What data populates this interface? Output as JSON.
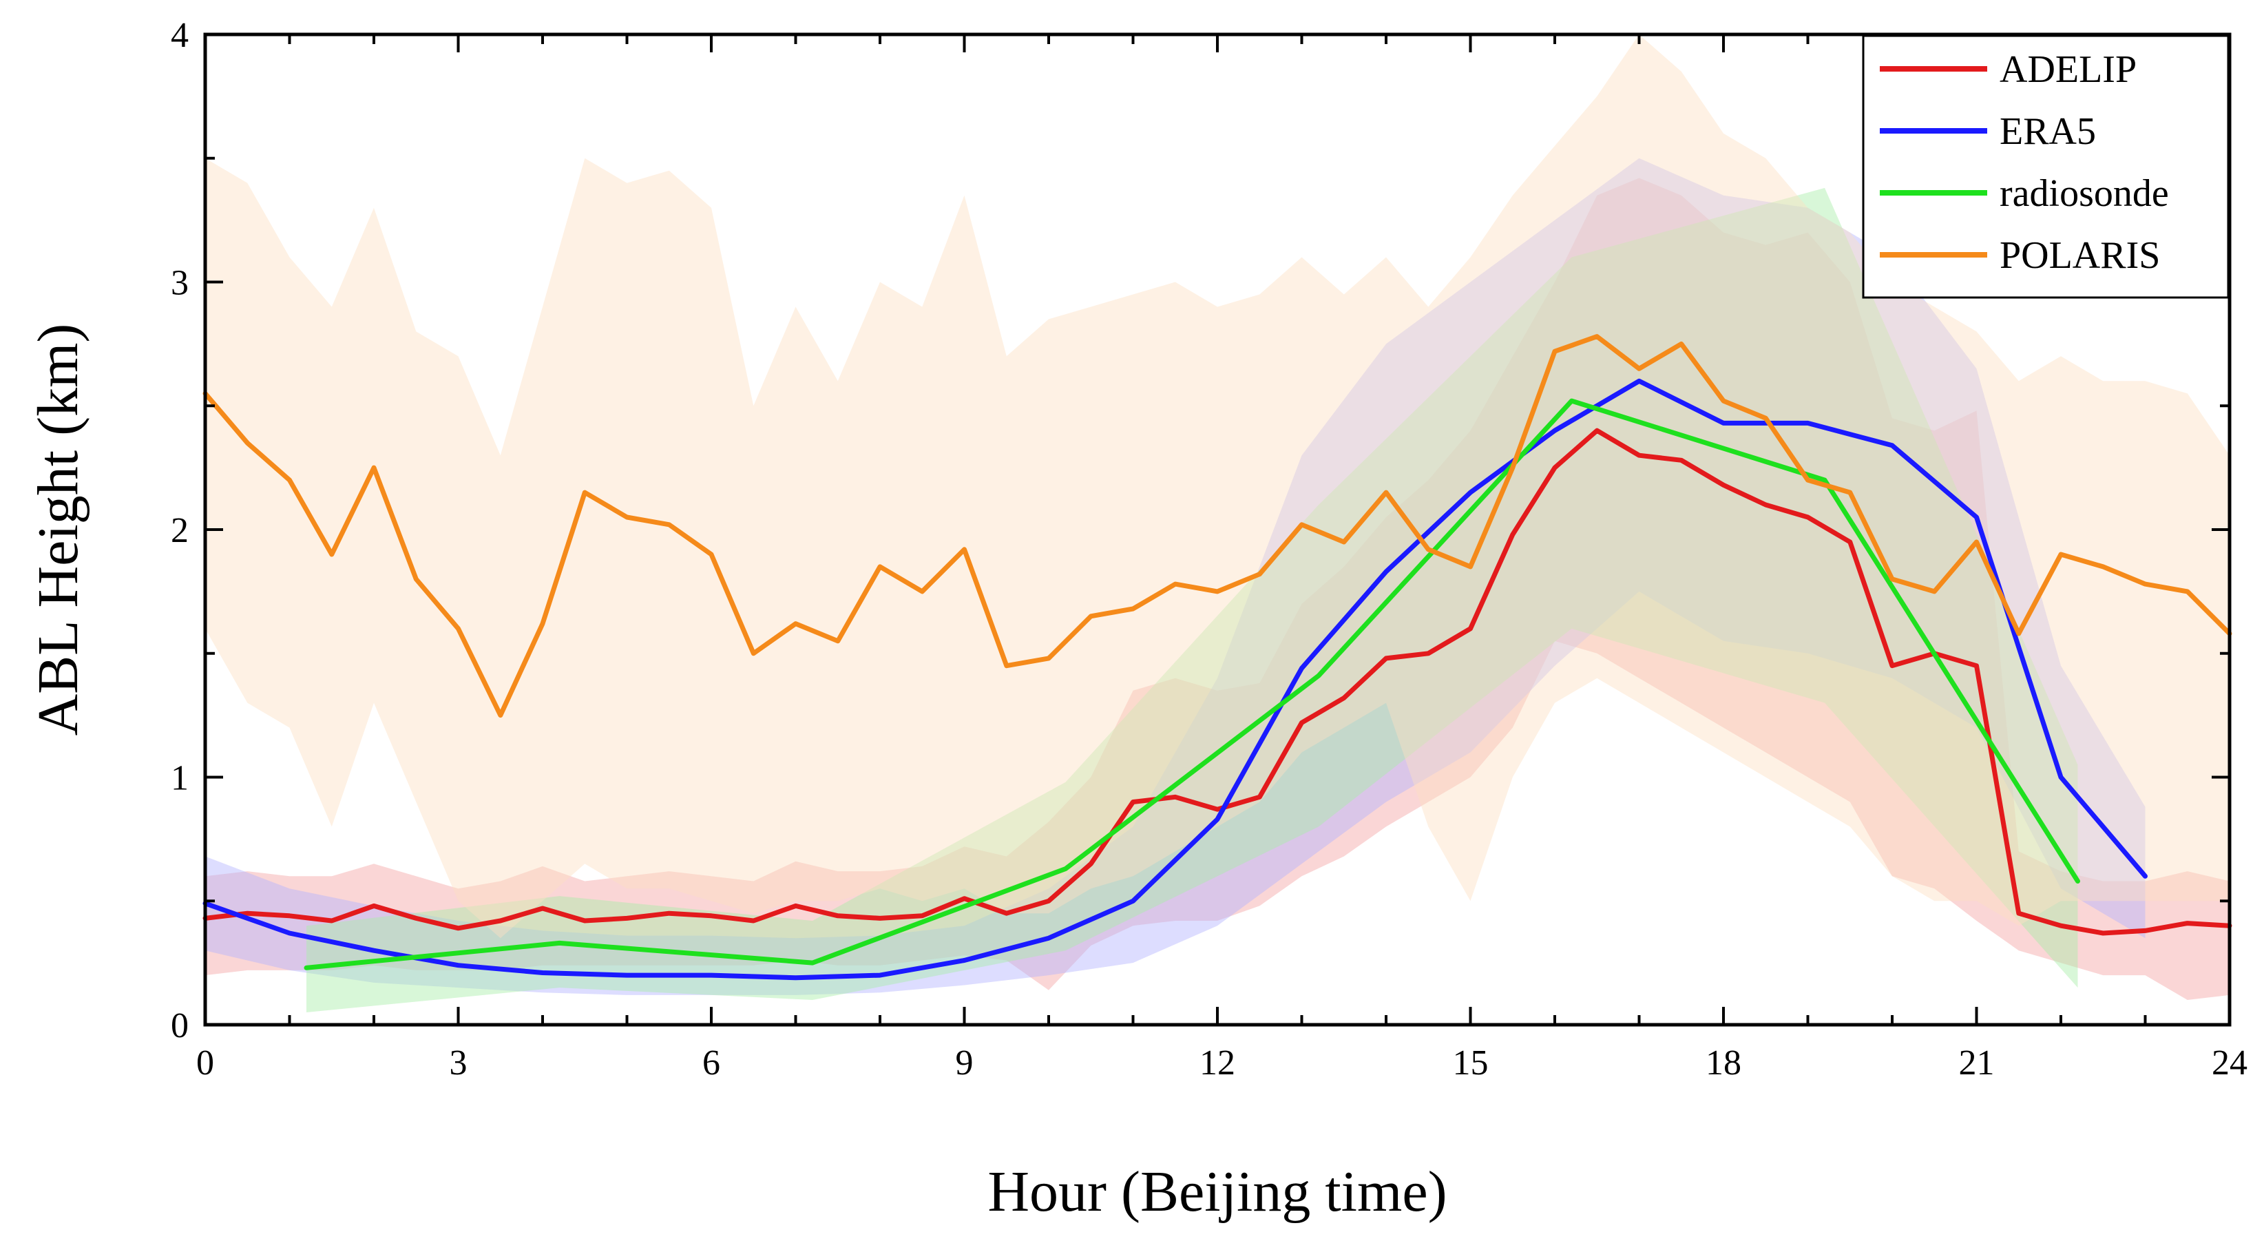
{
  "chart_data": {
    "type": "line",
    "title": "",
    "xlabel": "Hour (Beijing time)",
    "ylabel": "ABL Height (km)",
    "xlim": [
      0,
      24
    ],
    "ylim": [
      0,
      4
    ],
    "xticks": [
      0,
      3,
      6,
      9,
      12,
      15,
      18,
      21,
      24
    ],
    "yticks": [
      0,
      1,
      2,
      3,
      4
    ],
    "xtick_labels": [
      "0",
      "3",
      "6",
      "9",
      "12",
      "15",
      "18",
      "21",
      "24"
    ],
    "ytick_labels": [
      "0",
      "1",
      "2",
      "3",
      "4"
    ],
    "grid": false,
    "legend_position": "top-right",
    "series": [
      {
        "name": "ADELIP",
        "color": "#e31a1c",
        "band_color": "#f4a3a3",
        "x": [
          0,
          0.5,
          1,
          1.5,
          2,
          2.5,
          3,
          3.5,
          4,
          4.5,
          5,
          5.5,
          6,
          6.5,
          7,
          7.5,
          8,
          8.5,
          9,
          9.5,
          10,
          10.5,
          11,
          11.5,
          12,
          12.5,
          13,
          13.5,
          14,
          14.5,
          15,
          15.5,
          16,
          16.5,
          17,
          17.5,
          18,
          18.5,
          19,
          19.5,
          20,
          20.5,
          21,
          21.5,
          22,
          22.5,
          23,
          23.5,
          24
        ],
        "y": [
          0.43,
          0.45,
          0.44,
          0.42,
          0.48,
          0.43,
          0.39,
          0.42,
          0.47,
          0.42,
          0.43,
          0.45,
          0.44,
          0.42,
          0.48,
          0.44,
          0.43,
          0.44,
          0.51,
          0.45,
          0.5,
          0.65,
          0.9,
          0.92,
          0.87,
          0.92,
          1.22,
          1.32,
          1.48,
          1.5,
          1.6,
          1.98,
          2.25,
          2.4,
          2.3,
          2.28,
          2.18,
          2.1,
          2.05,
          1.95,
          1.45,
          1.5,
          1.45,
          0.45,
          0.4,
          0.37,
          0.38,
          0.41,
          0.4
        ],
        "lower": [
          0.2,
          0.22,
          0.22,
          0.22,
          0.24,
          0.22,
          0.22,
          0.22,
          0.24,
          0.24,
          0.24,
          0.24,
          0.24,
          0.24,
          0.26,
          0.24,
          0.24,
          0.26,
          0.28,
          0.26,
          0.14,
          0.32,
          0.4,
          0.42,
          0.42,
          0.48,
          0.6,
          0.68,
          0.8,
          0.9,
          1.0,
          1.2,
          1.55,
          1.5,
          1.4,
          1.3,
          1.2,
          1.1,
          1.0,
          0.9,
          0.6,
          0.55,
          0.42,
          0.3,
          0.25,
          0.2,
          0.2,
          0.1,
          0.12
        ],
        "upper": [
          0.6,
          0.62,
          0.6,
          0.6,
          0.65,
          0.6,
          0.55,
          0.58,
          0.64,
          0.58,
          0.6,
          0.62,
          0.6,
          0.58,
          0.66,
          0.62,
          0.62,
          0.64,
          0.72,
          0.68,
          0.82,
          1.0,
          1.35,
          1.4,
          1.35,
          1.38,
          1.7,
          1.85,
          2.05,
          2.2,
          2.4,
          2.7,
          3.0,
          3.35,
          3.42,
          3.35,
          3.2,
          3.15,
          3.2,
          3.0,
          2.45,
          2.4,
          2.48,
          0.7,
          0.62,
          0.58,
          0.58,
          0.62,
          0.58
        ]
      },
      {
        "name": "ERA5",
        "color": "#1a1aff",
        "band_color": "#b3b3ff",
        "x": [
          0,
          1,
          2,
          3,
          4,
          5,
          6,
          7,
          8,
          9,
          10,
          11,
          12,
          13,
          14,
          15,
          16,
          17,
          18,
          19,
          20,
          21,
          22,
          23
        ],
        "y": [
          0.49,
          0.37,
          0.3,
          0.24,
          0.21,
          0.2,
          0.2,
          0.19,
          0.2,
          0.26,
          0.35,
          0.5,
          0.83,
          1.44,
          1.83,
          2.15,
          2.4,
          2.6,
          2.43,
          2.43,
          2.34,
          2.05,
          1.0,
          0.6
        ],
        "lower": [
          0.3,
          0.22,
          0.17,
          0.15,
          0.13,
          0.12,
          0.12,
          0.12,
          0.13,
          0.16,
          0.2,
          0.25,
          0.4,
          0.65,
          0.9,
          1.1,
          1.45,
          1.75,
          1.55,
          1.5,
          1.4,
          1.2,
          0.55,
          0.35
        ],
        "upper": [
          0.68,
          0.55,
          0.48,
          0.42,
          0.38,
          0.36,
          0.36,
          0.35,
          0.36,
          0.4,
          0.55,
          0.8,
          1.4,
          2.3,
          2.75,
          3.0,
          3.25,
          3.5,
          3.35,
          3.3,
          3.1,
          2.65,
          1.45,
          0.88
        ]
      },
      {
        "name": "radiosonde",
        "color": "#1ee01e",
        "band_color": "#a8eea8",
        "x": [
          1.2,
          4.2,
          7.2,
          10.2,
          13.2,
          16.2,
          19.2,
          22.2
        ],
        "y": [
          0.23,
          0.33,
          0.25,
          0.63,
          1.41,
          2.52,
          2.2,
          0.58
        ],
        "lower": [
          0.05,
          0.15,
          0.1,
          0.3,
          0.8,
          1.6,
          1.3,
          0.15
        ],
        "upper": [
          0.4,
          0.52,
          0.42,
          0.98,
          2.1,
          3.1,
          3.38,
          1.05
        ]
      },
      {
        "name": "POLARIS",
        "color": "#f58a1a",
        "band_color": "#fde0c4",
        "x": [
          0,
          0.5,
          1,
          1.5,
          2,
          2.5,
          3,
          3.5,
          4,
          4.5,
          5,
          5.5,
          6,
          6.5,
          7,
          7.5,
          8,
          8.5,
          9,
          9.5,
          10,
          10.5,
          11,
          11.5,
          12,
          12.5,
          13,
          13.5,
          14,
          14.5,
          15,
          15.5,
          16,
          16.5,
          17,
          17.5,
          18,
          18.5,
          19,
          19.5,
          20,
          20.5,
          21,
          21.5,
          22,
          22.5,
          23,
          23.5,
          24
        ],
        "y": [
          2.55,
          2.35,
          2.2,
          1.9,
          2.25,
          1.8,
          1.6,
          1.25,
          1.62,
          2.15,
          2.05,
          2.02,
          1.9,
          1.5,
          1.62,
          1.55,
          1.85,
          1.75,
          1.92,
          1.45,
          1.48,
          1.65,
          1.68,
          1.78,
          1.75,
          1.82,
          2.02,
          1.95,
          2.15,
          1.92,
          1.85,
          2.25,
          2.72,
          2.78,
          2.65,
          2.75,
          2.52,
          2.45,
          2.2,
          2.15,
          1.8,
          1.75,
          1.95,
          1.58,
          1.9,
          1.85,
          1.78,
          1.75,
          1.58
        ],
        "lower": [
          1.6,
          1.3,
          1.2,
          0.8,
          1.3,
          0.9,
          0.5,
          0.35,
          0.5,
          0.65,
          0.55,
          0.55,
          0.5,
          0.45,
          0.5,
          0.5,
          0.55,
          0.5,
          0.55,
          0.45,
          0.45,
          0.55,
          0.6,
          0.7,
          0.8,
          0.9,
          1.1,
          1.2,
          1.3,
          0.8,
          0.5,
          1.0,
          1.3,
          1.4,
          1.3,
          1.2,
          1.1,
          1.0,
          0.9,
          0.8,
          0.6,
          0.5,
          0.5,
          0.4,
          0.5,
          0.5,
          0.5,
          0.5,
          0.5
        ],
        "upper": [
          3.5,
          3.4,
          3.1,
          2.9,
          3.3,
          2.8,
          2.7,
          2.3,
          2.9,
          3.5,
          3.4,
          3.45,
          3.3,
          2.5,
          2.9,
          2.6,
          3.0,
          2.9,
          3.35,
          2.7,
          2.85,
          2.9,
          2.95,
          3.0,
          2.9,
          2.95,
          3.1,
          2.95,
          3.1,
          2.9,
          3.1,
          3.35,
          3.55,
          3.75,
          4.0,
          3.85,
          3.6,
          3.5,
          3.3,
          3.2,
          3.0,
          2.9,
          2.8,
          2.6,
          2.7,
          2.6,
          2.6,
          2.55,
          2.3
        ]
      }
    ]
  }
}
